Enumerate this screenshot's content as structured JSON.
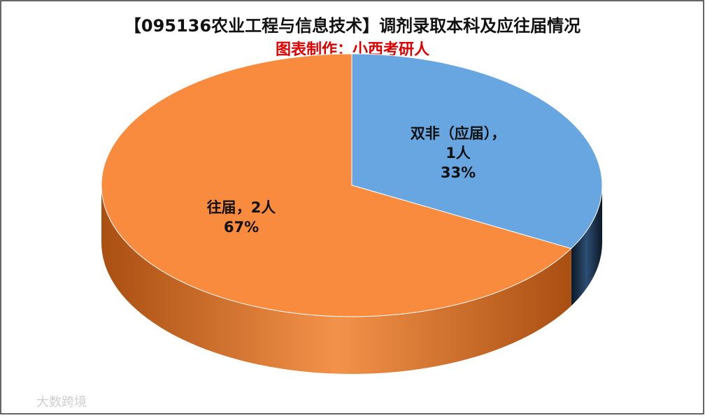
{
  "chart_data": {
    "type": "pie3d",
    "title": "【095136农业工程与信息技术】调剂录取本科及应往届情况",
    "subtitle": "图表制作：小西考研人",
    "categories": [
      "双非（应届）",
      "往届"
    ],
    "label_separator": "，",
    "counts": [
      1,
      2
    ],
    "count_labels": [
      "1人",
      "2人"
    ],
    "values": [
      33,
      67
    ],
    "value_labels": [
      "33%",
      "67%"
    ],
    "colors": [
      "#68a6e1",
      "#f88b3d"
    ],
    "side_colors": [
      [
        "#0c1826",
        "#2c4d72"
      ],
      [
        "#a94f12",
        "#f3924a"
      ]
    ],
    "watermark": "大数跨境"
  }
}
